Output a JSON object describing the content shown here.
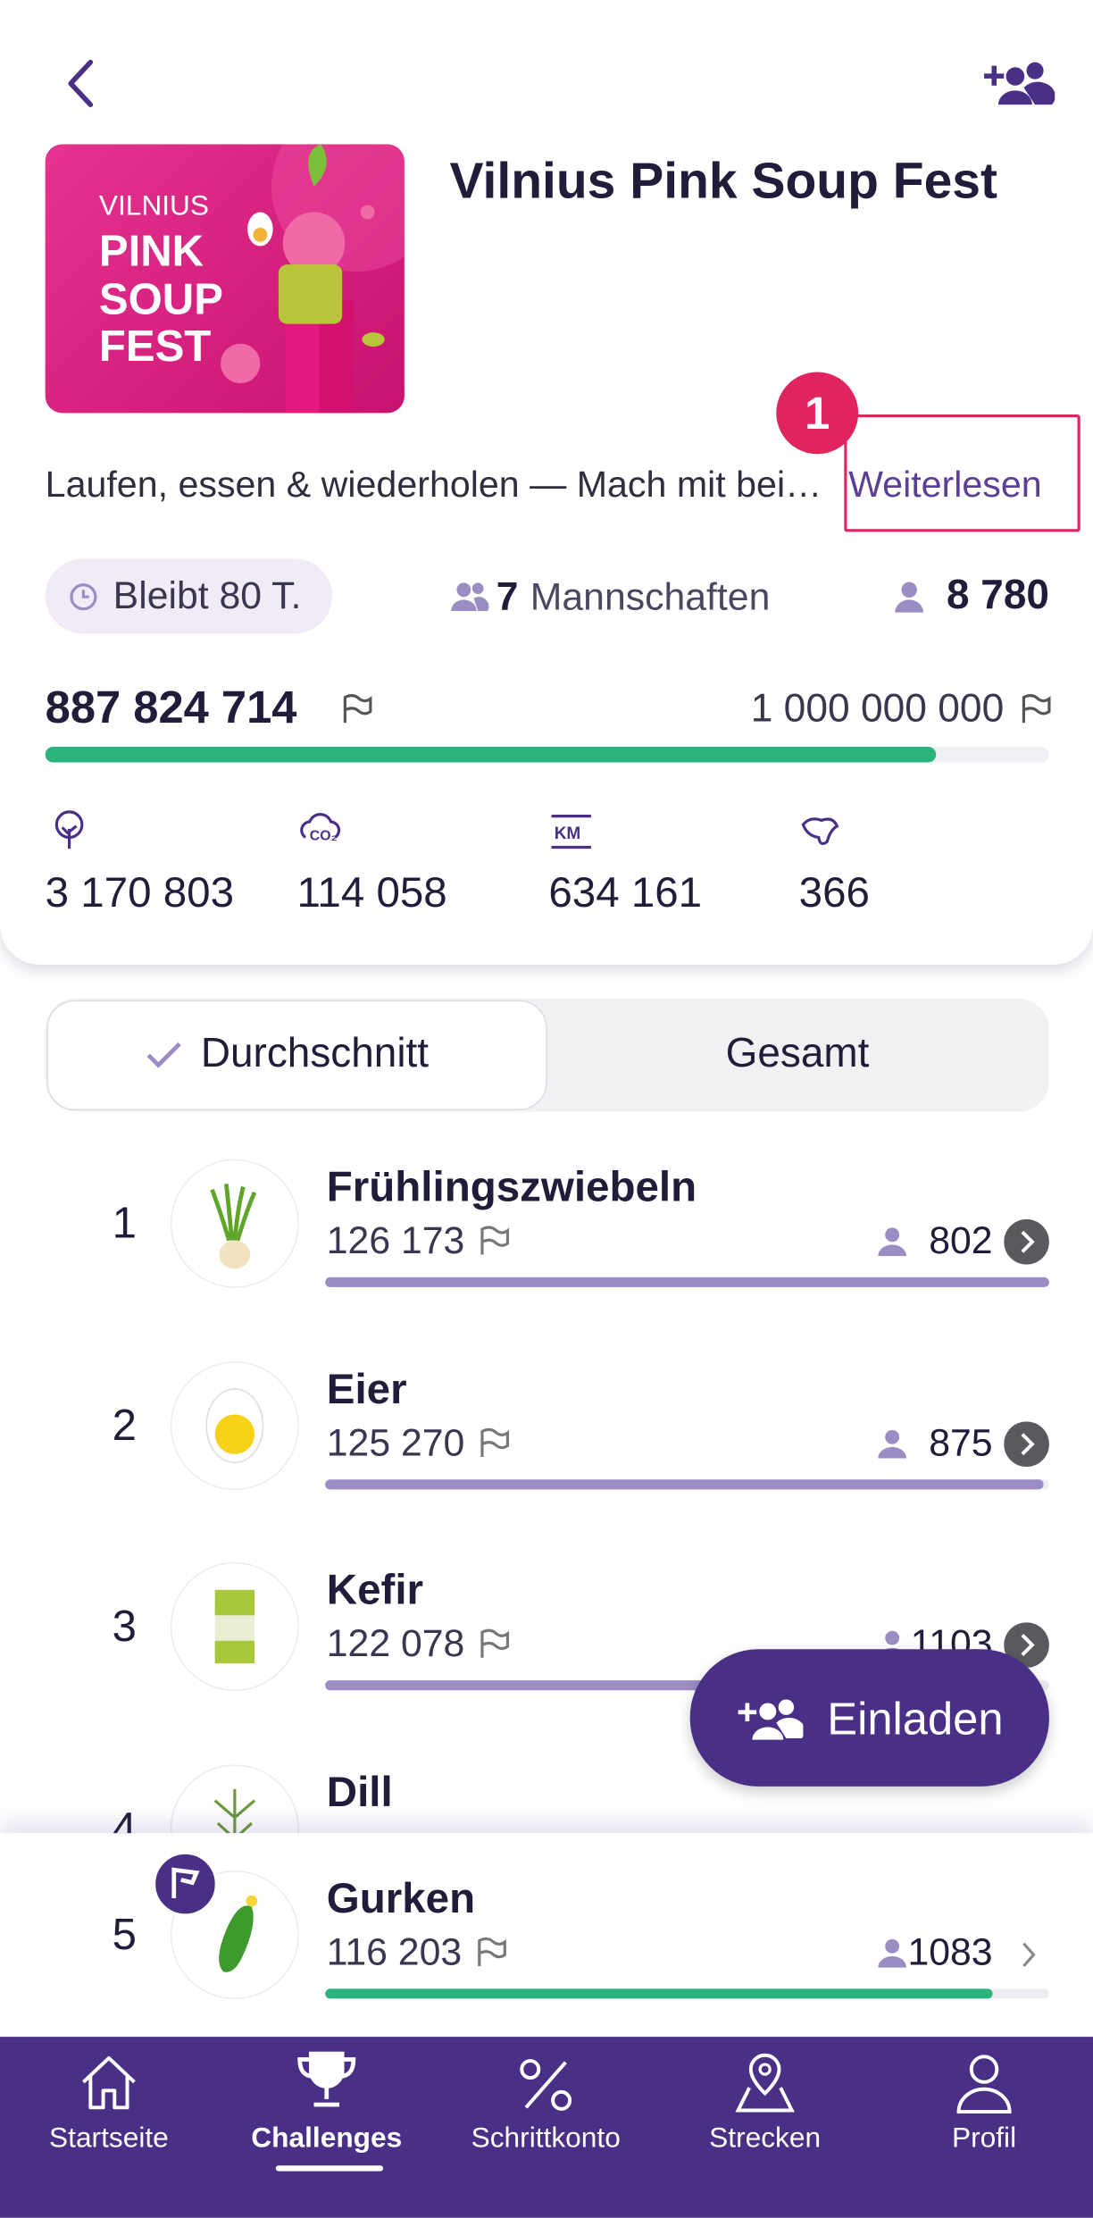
{
  "header": {
    "title": "Vilnius Pink Soup Fest",
    "banner": [
      "VILNIUS",
      "PINK",
      "SOUP",
      "FEST"
    ]
  },
  "description": {
    "text": "Laufen, essen & wiederholen — Mach mit bei…",
    "link": "Weiterlesen",
    "annotation": "1"
  },
  "stats": {
    "remaining": "Bleibt 80 T.",
    "teams_count": "7",
    "teams_label": "Mannschaften",
    "participants": "8 780"
  },
  "progress": {
    "current": "887 824 714",
    "goal": "1 000 000 000"
  },
  "metrics": [
    "3 170 803",
    "114 058",
    "634 161",
    "366"
  ],
  "tabs": [
    "Durchschnitt",
    "Gesamt"
  ],
  "leaderboard": [
    {
      "rank": "1",
      "name": "Frühlingszwiebeln",
      "score": "126 173",
      "members": "802"
    },
    {
      "rank": "2",
      "name": "Eier",
      "score": "125 270",
      "members": "875"
    },
    {
      "rank": "3",
      "name": "Kefir",
      "score": "122 078",
      "members": "1103"
    },
    {
      "rank": "4",
      "name": "Dill"
    },
    {
      "rank": "5",
      "name": "Gurken",
      "score": "116 203",
      "members": "1083"
    }
  ],
  "button": "Einladen",
  "nav": [
    "Startseite",
    "Challenges",
    "Schrittkonto",
    "Strecken",
    "Profil"
  ]
}
